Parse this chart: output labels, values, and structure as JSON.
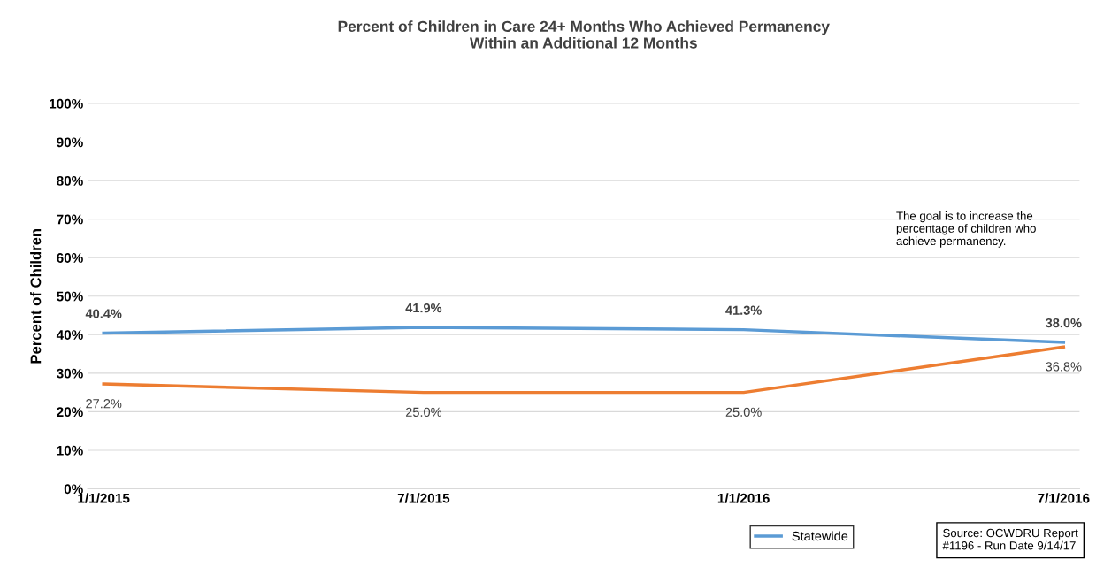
{
  "chart_data": {
    "type": "line",
    "title": "Percent of Children in Care 24+ Months Who Achieved Permanency\nWithin an Additional 12 Months",
    "ylabel": "Percent of Children",
    "categories": [
      "1/1/2015",
      "7/1/2015",
      "1/1/2016",
      "7/1/2016"
    ],
    "series": [
      {
        "color": "#ed7d31",
        "values": [
          27.2,
          25.0,
          25.0,
          36.8
        ],
        "value_labels": [
          "27.2%",
          "25.0%",
          "25.0%",
          "36.8%"
        ]
      },
      {
        "name": "Statewide",
        "color": "#5b9bd5",
        "values": [
          40.4,
          41.9,
          41.3,
          38.0
        ],
        "value_labels": [
          "40.4%",
          "41.9%",
          "41.3%",
          "38.0%"
        ]
      }
    ],
    "ylim": [
      0,
      100
    ],
    "yticks": [
      {
        "value": 0,
        "label": "0%"
      },
      {
        "value": 10,
        "label": "10%"
      },
      {
        "value": 20,
        "label": "20%"
      },
      {
        "value": 30,
        "label": "30%"
      },
      {
        "value": 40,
        "label": "40%"
      },
      {
        "value": 50,
        "label": "50%"
      },
      {
        "value": 60,
        "label": "60%"
      },
      {
        "value": 70,
        "label": "70%"
      },
      {
        "value": 80,
        "label": "80%"
      },
      {
        "value": 90,
        "label": "90%"
      },
      {
        "value": 100,
        "label": "100%"
      }
    ],
    "grid": "y",
    "legend": "bottom",
    "marker": "none",
    "line_style": "solid",
    "annotations": [
      "The goal is to increase the\npercentage of children who\nachieve permanency.",
      "Source: OCWDRU Report\n#1196 - Run Date 9/14/17"
    ]
  }
}
